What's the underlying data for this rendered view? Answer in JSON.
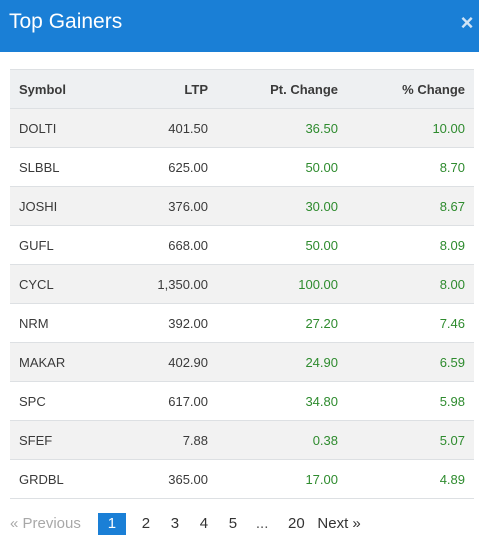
{
  "modal": {
    "title": "Top Gainers",
    "close_glyph": "×"
  },
  "table": {
    "headers": {
      "symbol": "Symbol",
      "ltp": "LTP",
      "pt_change": "Pt. Change",
      "pct_change": "% Change"
    },
    "rows": [
      {
        "symbol": "DOLTI",
        "ltp": "401.50",
        "pt_change": "36.50",
        "pct_change": "10.00"
      },
      {
        "symbol": "SLBBL",
        "ltp": "625.00",
        "pt_change": "50.00",
        "pct_change": "8.70"
      },
      {
        "symbol": "JOSHI",
        "ltp": "376.00",
        "pt_change": "30.00",
        "pct_change": "8.67"
      },
      {
        "symbol": "GUFL",
        "ltp": "668.00",
        "pt_change": "50.00",
        "pct_change": "8.09"
      },
      {
        "symbol": "CYCL",
        "ltp": "1,350.00",
        "pt_change": "100.00",
        "pct_change": "8.00"
      },
      {
        "symbol": "NRM",
        "ltp": "392.00",
        "pt_change": "27.20",
        "pct_change": "7.46"
      },
      {
        "symbol": "MAKAR",
        "ltp": "402.90",
        "pt_change": "24.90",
        "pct_change": "6.59"
      },
      {
        "symbol": "SPC",
        "ltp": "617.00",
        "pt_change": "34.80",
        "pct_change": "5.98"
      },
      {
        "symbol": "SFEF",
        "ltp": "7.88",
        "pt_change": "0.38",
        "pct_change": "5.07"
      },
      {
        "symbol": "GRDBL",
        "ltp": "365.00",
        "pt_change": "17.00",
        "pct_change": "4.89"
      }
    ]
  },
  "pagination": {
    "previous_label": "« Previous",
    "pages": [
      "1",
      "2",
      "3",
      "4",
      "5"
    ],
    "ellipsis": "...",
    "last_page": "20",
    "next_label": "Next »",
    "current_page": "1"
  },
  "colors": {
    "header_blue": "#1a7fd6",
    "positive_green": "#2e8b2e",
    "stripe_gray": "#f2f2f2"
  }
}
